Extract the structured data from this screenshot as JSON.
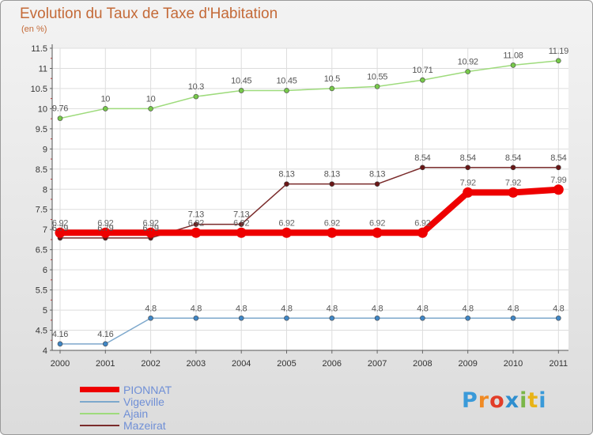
{
  "chart_data": {
    "type": "line",
    "title": "Evolution du Taux de Taxe d'Habitation",
    "subtitle": "(en %)",
    "x": [
      "2000",
      "2001",
      "2002",
      "2003",
      "2004",
      "2005",
      "2006",
      "2007",
      "2008",
      "2009",
      "2010",
      "2011"
    ],
    "ylim": [
      4,
      11.5
    ],
    "yticks": [
      "4",
      "4.5",
      "5",
      "5.5",
      "6",
      "6.5",
      "7",
      "7.5",
      "8",
      "8.5",
      "9",
      "9.5",
      "10",
      "10.5",
      "11",
      "11.5"
    ],
    "grid": true,
    "legend_position": "bottom-left",
    "series": [
      {
        "name": "PIONNAT",
        "color": "#ee0000",
        "marker": "#ee0000",
        "labelcolor": "#666666",
        "values": [
          6.92,
          6.92,
          6.92,
          6.92,
          6.92,
          6.92,
          6.92,
          6.92,
          6.92,
          7.92,
          7.92,
          7.99
        ],
        "labels": [
          "6.92",
          "6.92",
          "6.92",
          "6.92",
          "6.92",
          "6.92",
          "6.92",
          "6.92",
          "6.92",
          "7.92",
          "7.92",
          "7.99"
        ]
      },
      {
        "name": "Vigeville",
        "color": "#7da8cc",
        "marker": "#3f86c6",
        "labelcolor": "#555555",
        "values": [
          4.16,
          4.16,
          4.8,
          4.8,
          4.8,
          4.8,
          4.8,
          4.8,
          4.8,
          4.8,
          4.8,
          4.8
        ],
        "labels": [
          "4.16",
          "4.16",
          "4.8",
          "4.8",
          "4.8",
          "4.8",
          "4.8",
          "4.8",
          "4.8",
          "4.8",
          "4.8",
          "4.8"
        ]
      },
      {
        "name": "Ajain",
        "color": "#9edb7c",
        "marker": "#77c94a",
        "labelcolor": "#555555",
        "values": [
          9.76,
          10,
          10,
          10.3,
          10.45,
          10.45,
          10.5,
          10.55,
          10.71,
          10.92,
          11.08,
          11.19
        ],
        "labels": [
          "9.76",
          "10",
          "10",
          "10.3",
          "10.45",
          "10.45",
          "10.5",
          "10.55",
          "10.71",
          "10.92",
          "11.08",
          "11.19"
        ]
      },
      {
        "name": "Mazeirat",
        "color": "#7a2b2b",
        "marker": "#6a1616",
        "labelcolor": "#555555",
        "values": [
          6.79,
          6.79,
          6.79,
          7.13,
          7.13,
          8.13,
          8.13,
          8.13,
          8.54,
          8.54,
          8.54,
          8.54
        ],
        "labels": [
          "6.79",
          "6.79",
          "6.79",
          "7.13",
          "7.13",
          "8.13",
          "8.13",
          "8.13",
          "8.54",
          "8.54",
          "8.54",
          "8.54"
        ]
      }
    ]
  },
  "logo": {
    "text": "Proxiti"
  }
}
